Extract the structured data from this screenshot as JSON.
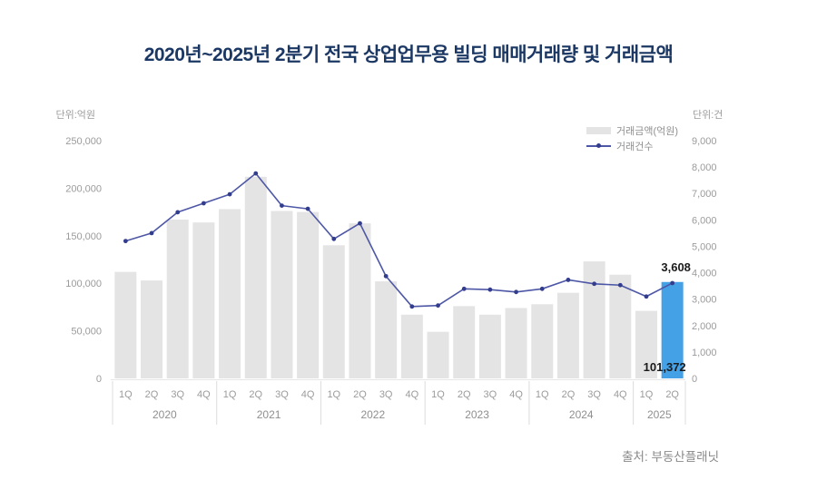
{
  "title": "2020년~2025년 2분기 전국 상업업무용 빌딩 매매거래량 및 거래금액",
  "source": "출처: 부동산플래닛",
  "colors": {
    "title": "#1b3763",
    "bar": "#e4e4e4",
    "bar_highlight": "#45a1e6",
    "line": "#4d57a6",
    "marker": "#333d8e",
    "axis_text": "#9b9b9b",
    "year_text": "#8f8f8f",
    "annotation": "#1b1b1b",
    "divider": "#dcdcdc",
    "axis_line": "#e6e6e6",
    "source": "#8a8a8a"
  },
  "chart_data": {
    "type": "bar+line combo",
    "grid": false,
    "legend_position": "top-right",
    "groups": [
      {
        "year": "2020",
        "quarters": [
          "1Q",
          "2Q",
          "3Q",
          "4Q"
        ]
      },
      {
        "year": "2021",
        "quarters": [
          "1Q",
          "2Q",
          "3Q",
          "4Q"
        ]
      },
      {
        "year": "2022",
        "quarters": [
          "1Q",
          "2Q",
          "3Q",
          "4Q"
        ]
      },
      {
        "year": "2023",
        "quarters": [
          "1Q",
          "2Q",
          "3Q",
          "4Q"
        ]
      },
      {
        "year": "2024",
        "quarters": [
          "1Q",
          "2Q",
          "3Q",
          "4Q"
        ]
      },
      {
        "year": "2025",
        "quarters": [
          "1Q",
          "2Q"
        ]
      }
    ],
    "series": [
      {
        "name": "거래금액(억원)",
        "type": "bar",
        "axis": "left",
        "values": [
          112000,
          103000,
          167000,
          164000,
          178000,
          212000,
          176000,
          175000,
          140000,
          163000,
          102000,
          67000,
          49000,
          76000,
          67000,
          74000,
          78000,
          90000,
          123000,
          109000,
          71000,
          101372
        ]
      },
      {
        "name": "거래건수",
        "type": "line",
        "axis": "right",
        "values": [
          5200,
          5500,
          6290,
          6630,
          6970,
          7760,
          6540,
          6420,
          5280,
          5870,
          3870,
          2720,
          2760,
          3390,
          3360,
          3270,
          3390,
          3730,
          3580,
          3530,
          3100,
          3608
        ]
      }
    ],
    "left_axis": {
      "label": "단위:억원",
      "min": 0,
      "max": 250000,
      "step": 50000,
      "tick_labels": [
        "0",
        "50,000",
        "100,000",
        "150,000",
        "200,000",
        "250,000"
      ]
    },
    "right_axis": {
      "label": "단위:건",
      "min": 0,
      "max": 9000,
      "step": 1000,
      "tick_labels": [
        "0",
        "1,000",
        "2,000",
        "3,000",
        "4,000",
        "5,000",
        "6,000",
        "7,000",
        "8,000",
        "9,000"
      ]
    },
    "highlight": {
      "index": 21,
      "bar_value_label": "101,372",
      "line_value_label": "3,608"
    }
  }
}
